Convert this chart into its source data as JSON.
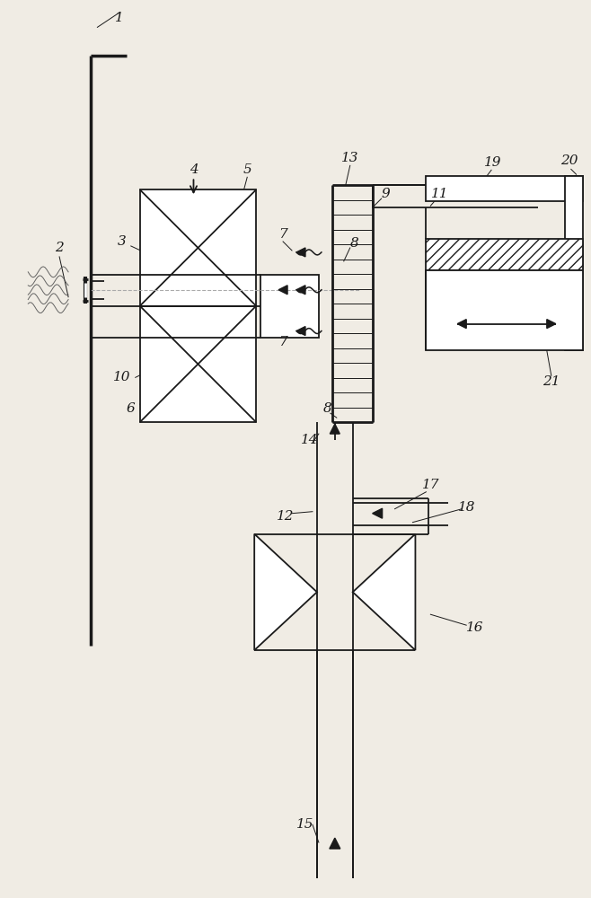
{
  "bg_color": "#f0ece4",
  "line_color": "#1a1a1a",
  "wall_color": "#d0d0d0",
  "hatch_color": "#888888"
}
